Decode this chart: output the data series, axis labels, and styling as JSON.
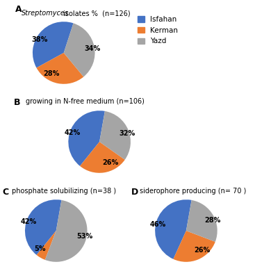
{
  "chart_A": {
    "label": "A",
    "values": [
      38,
      28,
      34
    ],
    "pct_labels": [
      "38%",
      "28%",
      "34%"
    ],
    "colors": [
      "#4472C4",
      "#ED7D31",
      "#A5A5A5"
    ],
    "startangle": 72
  },
  "chart_B": {
    "label": "B",
    "title": "growing in N-free medium (n=106)",
    "values": [
      42,
      26,
      32
    ],
    "pct_labels": [
      "42%",
      "26%",
      "32%"
    ],
    "colors": [
      "#4472C4",
      "#ED7D31",
      "#A5A5A5"
    ],
    "startangle": 80
  },
  "chart_C": {
    "label": "C",
    "title": "phosphate solubilizing (n=38 )",
    "values": [
      42,
      5,
      53
    ],
    "pct_labels": [
      "42%",
      "5%",
      "53%"
    ],
    "colors": [
      "#4472C4",
      "#ED7D31",
      "#A5A5A5"
    ],
    "startangle": 80
  },
  "chart_D": {
    "label": "D",
    "title": "siderophore producing (n= 70 )",
    "values": [
      46,
      26,
      28
    ],
    "pct_labels": [
      "46%",
      "26%",
      "28%"
    ],
    "colors": [
      "#4472C4",
      "#ED7D31",
      "#A5A5A5"
    ],
    "startangle": 80
  },
  "title_A_italic": "Streptomyces",
  "title_A_normal": " isolates %  (n=126)",
  "legend_labels": [
    "Isfahan",
    "Kerman",
    "Yazd"
  ],
  "legend_colors": [
    "#4472C4",
    "#ED7D31",
    "#A5A5A5"
  ],
  "background_color": "#FFFFFF",
  "pct_fontsize": 7,
  "title_fontsize": 7,
  "label_fontsize": 9,
  "legend_fontsize": 7.5
}
